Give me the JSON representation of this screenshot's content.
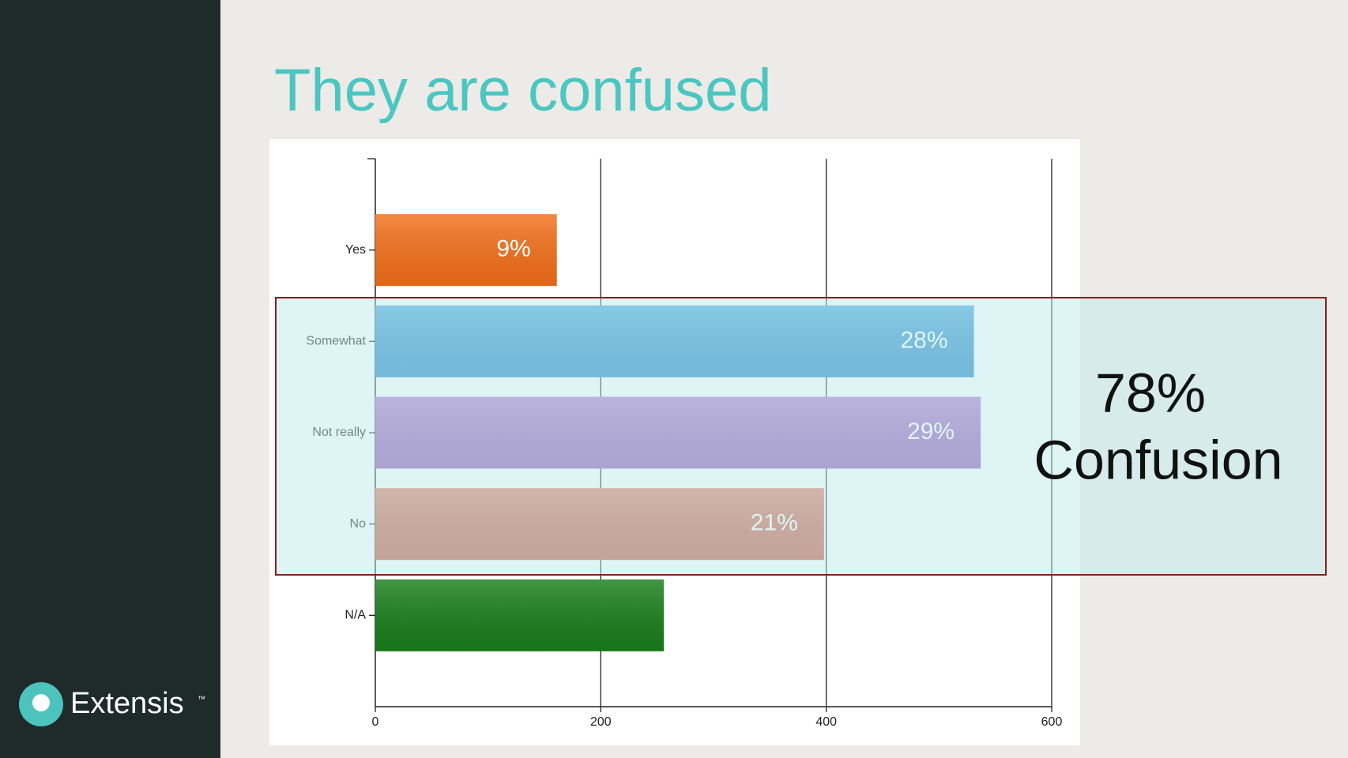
{
  "title": "They are confused",
  "logo": {
    "name": "Extensis",
    "mark": "™"
  },
  "chart_data": {
    "type": "bar",
    "orientation": "horizontal",
    "categories": [
      "Yes",
      "Somewhat",
      "Not really",
      "No",
      "N/A"
    ],
    "values": [
      161,
      531,
      537,
      398,
      256
    ],
    "percent_labels": [
      "9%",
      "28%",
      "29%",
      "21%",
      null
    ],
    "colors": [
      "#f4701a",
      "#2b93d8",
      "#a562c6",
      "#dc644f",
      "#197f1c"
    ],
    "xlim": [
      0,
      600
    ],
    "xticks": [
      0,
      200,
      400,
      600
    ],
    "grid": true,
    "annotation": [
      "78%",
      "Confusion"
    ]
  }
}
